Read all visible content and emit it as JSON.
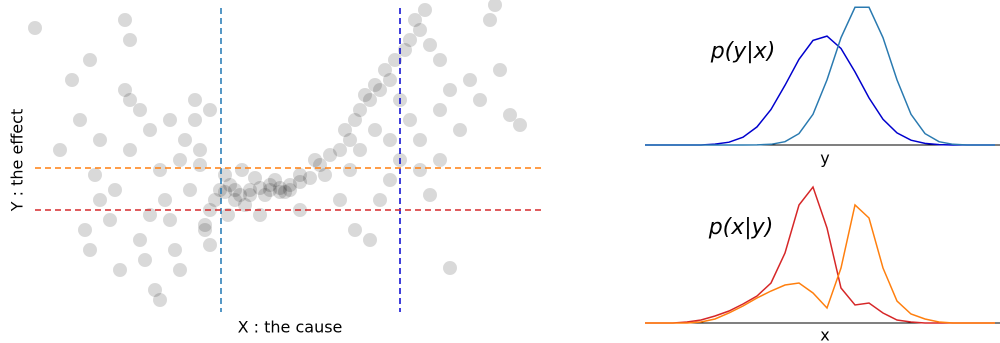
{
  "chart_data": [
    {
      "type": "scatter",
      "xlabel": "X : the cause",
      "ylabel": "Y : the effect",
      "color": "#000000",
      "xlim": [
        0,
        515
      ],
      "ylim": [
        0,
        307
      ],
      "x": [
        5,
        42,
        60,
        50,
        65,
        70,
        55,
        90,
        125,
        130,
        80,
        100,
        110,
        120,
        130,
        140,
        145,
        150,
        160,
        170,
        175,
        180,
        165,
        100,
        95,
        85,
        110,
        120,
        135,
        150,
        70,
        30,
        60,
        100,
        95,
        180,
        155,
        115,
        140,
        165,
        190,
        200,
        210,
        220,
        230,
        240,
        250,
        260,
        270,
        280,
        195,
        205,
        215,
        225,
        235,
        185,
        198,
        212,
        245,
        255,
        270,
        290,
        300,
        310,
        320,
        295,
        285,
        315,
        325,
        330,
        340,
        350,
        360,
        355,
        345,
        335,
        365,
        375,
        380,
        390,
        385,
        395,
        400,
        410,
        370,
        380,
        390,
        330,
        320,
        310,
        325,
        340,
        350,
        360,
        370,
        390,
        410,
        420,
        430,
        440,
        450,
        460,
        470,
        480,
        490,
        465,
        410,
        400,
        420,
        360,
        345,
        270,
        230,
        180,
        175,
        170,
        220,
        240,
        250,
        205,
        260,
        195
      ],
      "y": [
        284,
        232,
        252,
        192,
        137,
        112,
        82,
        42,
        22,
        12,
        92,
        162,
        202,
        182,
        142,
        92,
        62,
        42,
        122,
        162,
        82,
        102,
        192,
        212,
        222,
        122,
        72,
        97,
        112,
        152,
        172,
        162,
        62,
        272,
        292,
        202,
        172,
        52,
        192,
        212,
        122,
        127,
        117,
        122,
        124,
        122,
        124,
        127,
        130,
        134,
        137,
        112,
        107,
        134,
        117,
        112,
        97,
        142,
        132,
        120,
        137,
        147,
        157,
        162,
        172,
        137,
        152,
        182,
        192,
        202,
        212,
        222,
        232,
        242,
        227,
        217,
        252,
        262,
        272,
        282,
        292,
        302,
        267,
        252,
        212,
        192,
        172,
        162,
        142,
        112,
        82,
        72,
        112,
        132,
        152,
        142,
        202,
        222,
        182,
        232,
        212,
        292,
        242,
        197,
        187,
        307,
        152,
        117,
        44,
        172,
        182,
        102,
        97,
        67,
        87,
        147,
        117,
        127,
        120,
        122,
        122,
        120
      ],
      "reference_lines": [
        {
          "axis": "x",
          "value": 191,
          "color": "#1f77b4"
        },
        {
          "axis": "x",
          "value": 370,
          "color": "#0000cd"
        },
        {
          "axis": "y",
          "value": 144,
          "color": "#ff7f0e"
        },
        {
          "axis": "y",
          "value": 102,
          "color": "#d62728"
        }
      ]
    },
    {
      "type": "line",
      "annotation": "p(y|x)",
      "xlabel": "y",
      "xlim": [
        0,
        100
      ],
      "ylim": [
        0,
        1.02
      ],
      "x": [
        0,
        4,
        8,
        12,
        16,
        20,
        24,
        28,
        32,
        36,
        40,
        44,
        48,
        52,
        56,
        60,
        64,
        68,
        72,
        76,
        80,
        84,
        88,
        92,
        96,
        100
      ],
      "series": [
        {
          "color": "#0000cd",
          "values": [
            0,
            0,
            0,
            0,
            0,
            0.006,
            0.02,
            0.055,
            0.127,
            0.25,
            0.42,
            0.603,
            0.736,
            0.766,
            0.679,
            0.514,
            0.331,
            0.181,
            0.085,
            0.034,
            0.011,
            0.003,
            0,
            0,
            0,
            0
          ]
        },
        {
          "color": "#2a7ab0",
          "values": [
            0,
            0,
            0,
            0,
            0,
            0,
            0,
            0,
            0.001,
            0.005,
            0.023,
            0.08,
            0.216,
            0.458,
            0.755,
            0.969,
            0.969,
            0.755,
            0.458,
            0.216,
            0.08,
            0.023,
            0.005,
            0,
            0,
            0
          ]
        }
      ]
    },
    {
      "type": "line",
      "annotation": "p(x|y)",
      "xlabel": "x",
      "xlim": [
        0,
        100
      ],
      "ylim": [
        0,
        140
      ],
      "x": [
        0,
        4,
        8,
        12,
        16,
        20,
        24,
        28,
        32,
        36,
        40,
        44,
        48,
        52,
        56,
        60,
        64,
        68,
        72,
        76,
        80,
        84,
        88,
        92,
        96,
        100
      ],
      "series": [
        {
          "color": "#d62728",
          "values": [
            0,
            0,
            0,
            1,
            3,
            7,
            12,
            19,
            27,
            40,
            70,
            118,
            136,
            95,
            35,
            18,
            20,
            10,
            3,
            1,
            0,
            0,
            0,
            0,
            0,
            0
          ]
        },
        {
          "color": "#ff7f0e",
          "values": [
            0,
            0,
            0,
            0,
            1,
            4,
            10,
            17,
            25,
            32,
            38,
            40,
            30,
            15,
            55,
            118,
            105,
            55,
            22,
            9,
            4,
            1,
            0,
            0,
            0,
            0
          ]
        }
      ]
    }
  ]
}
